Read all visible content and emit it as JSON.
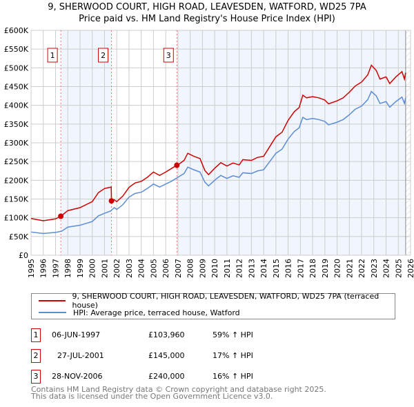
{
  "chart_data": {
    "type": "line",
    "title": "9, SHERWOOD COURT, HIGH ROAD, LEAVESDEN, WATFORD, WD25 7PA",
    "subtitle": "Price paid vs. HM Land Registry's House Price Index (HPI)",
    "xlim": [
      1995,
      2026
    ],
    "ylim": [
      0,
      600000
    ],
    "x_ticks": [
      "1995",
      "1996",
      "1997",
      "1998",
      "1999",
      "2000",
      "2001",
      "2002",
      "2003",
      "2004",
      "2005",
      "2006",
      "2007",
      "2008",
      "2009",
      "2010",
      "2011",
      "2012",
      "2013",
      "2014",
      "2015",
      "2016",
      "2017",
      "2018",
      "2019",
      "2020",
      "2021",
      "2022",
      "2023",
      "2024",
      "2025",
      "2026"
    ],
    "y_ticks": [
      {
        "v": 0,
        "l": "£0"
      },
      {
        "v": 50000,
        "l": "£50K"
      },
      {
        "v": 100000,
        "l": "£100K"
      },
      {
        "v": 150000,
        "l": "£150K"
      },
      {
        "v": 200000,
        "l": "£200K"
      },
      {
        "v": 250000,
        "l": "£250K"
      },
      {
        "v": 300000,
        "l": "£300K"
      },
      {
        "v": 350000,
        "l": "£350K"
      },
      {
        "v": 400000,
        "l": "£400K"
      },
      {
        "v": 450000,
        "l": "£450K"
      },
      {
        "v": 500000,
        "l": "£500K"
      },
      {
        "v": 550000,
        "l": "£550K"
      },
      {
        "v": 600000,
        "l": "£600K"
      }
    ],
    "grid": true,
    "series": [
      {
        "name": "9, SHERWOOD COURT, HIGH ROAD, LEAVESDEN, WATFORD, WD25 7PA (terraced house)",
        "color": "#cc0000",
        "x": [
          1995,
          1996,
          1997,
          1997.43,
          1998,
          1999,
          2000,
          2000.5,
          2001,
          2001.55,
          2001.57,
          2001.8,
          2002,
          2002.5,
          2003,
          2003.5,
          2004,
          2004.5,
          2005,
          2005.5,
          2006,
          2006.5,
          2006.9,
          2007,
          2007.5,
          2007.8,
          2008.3,
          2008.8,
          2009.2,
          2009.5,
          2010,
          2010.5,
          2011,
          2011.5,
          2012,
          2012.3,
          2013,
          2013.5,
          2014,
          2014.5,
          2015,
          2015.5,
          2016,
          2016.5,
          2016.9,
          2017.2,
          2017.5,
          2018,
          2018.5,
          2019,
          2019.3,
          2020,
          2020.5,
          2021,
          2021.5,
          2022,
          2022.5,
          2022.8,
          2023.2,
          2023.5,
          2024,
          2024.3,
          2024.8,
          2025.3,
          2025.5,
          2025.6
        ],
        "y": [
          98000,
          92000,
          97000,
          104000,
          119000,
          127000,
          143000,
          167000,
          178000,
          182000,
          145000,
          148000,
          143000,
          158000,
          181000,
          193000,
          197000,
          208000,
          222000,
          213000,
          222000,
          232000,
          240000,
          241000,
          253000,
          272000,
          264000,
          258000,
          226000,
          215000,
          232000,
          247000,
          238000,
          246000,
          241000,
          255000,
          253000,
          261000,
          264000,
          290000,
          316000,
          328000,
          360000,
          383000,
          394000,
          427000,
          420000,
          423000,
          420000,
          414000,
          404000,
          412000,
          420000,
          435000,
          452000,
          462000,
          481000,
          507000,
          493000,
          470000,
          476000,
          458000,
          476000,
          490000,
          470000,
          487000
        ]
      },
      {
        "name": "HPI: Average price, terraced house, Watford",
        "color": "#5b8dd6",
        "x": [
          1995,
          1996,
          1997,
          1997.5,
          1998,
          1999,
          2000,
          2000.5,
          2001,
          2001.5,
          2001.8,
          2002,
          2002.5,
          2003,
          2003.5,
          2004,
          2004.5,
          2005,
          2005.5,
          2006,
          2006.5,
          2007,
          2007.5,
          2007.8,
          2008.3,
          2008.8,
          2009.2,
          2009.5,
          2010,
          2010.5,
          2011,
          2011.5,
          2012,
          2012.3,
          2013,
          2013.5,
          2014,
          2014.5,
          2015,
          2015.5,
          2016,
          2016.5,
          2016.9,
          2017.2,
          2017.5,
          2018,
          2018.5,
          2019,
          2019.3,
          2020,
          2020.5,
          2021,
          2021.5,
          2022,
          2022.5,
          2022.8,
          2023.2,
          2023.5,
          2024,
          2024.3,
          2024.8,
          2025.3,
          2025.5,
          2025.6
        ],
        "y": [
          62000,
          58000,
          61000,
          64000,
          75000,
          80000,
          90000,
          105000,
          112000,
          118000,
          127000,
          122000,
          135000,
          155000,
          165000,
          168000,
          178000,
          190000,
          182000,
          190000,
          198000,
          208000,
          218000,
          235000,
          228000,
          222000,
          195000,
          185000,
          200000,
          213000,
          205000,
          212000,
          208000,
          220000,
          218000,
          225000,
          228000,
          250000,
          272000,
          283000,
          310000,
          330000,
          340000,
          368000,
          362000,
          365000,
          362000,
          357000,
          348000,
          355000,
          362000,
          375000,
          390000,
          398000,
          415000,
          437000,
          425000,
          405000,
          410000,
          395000,
          410000,
          422000,
          405000,
          420000
        ]
      }
    ],
    "sales": [
      {
        "n": "1",
        "x": 1997.43,
        "y": 103960
      },
      {
        "n": "2",
        "x": 2001.57,
        "y": 145000
      },
      {
        "n": "3",
        "x": 2006.91,
        "y": 240000
      }
    ],
    "shaded": [
      [
        1997.43,
        2001.57
      ],
      [
        2006.91,
        2025.6
      ]
    ],
    "forecast_hatch_from": 2025.6
  },
  "legend": {
    "red": "9, SHERWOOD COURT, HIGH ROAD, LEAVESDEN, WATFORD, WD25 7PA (terraced house)",
    "blue": "HPI: Average price, terraced house, Watford"
  },
  "table": [
    {
      "n": "1",
      "date": "06-JUN-1997",
      "price": "£103,960",
      "hpi": "59% ↑ HPI"
    },
    {
      "n": "2",
      "date": "27-JUL-2001",
      "price": "£145,000",
      "hpi": "17% ↑ HPI"
    },
    {
      "n": "3",
      "date": "28-NOV-2006",
      "price": "£240,000",
      "hpi": "16% ↑ HPI"
    }
  ],
  "footer": {
    "line1": "Contains HM Land Registry data © Crown copyright and database right 2025.",
    "line2": "This data is licensed under the Open Government Licence v3.0."
  }
}
